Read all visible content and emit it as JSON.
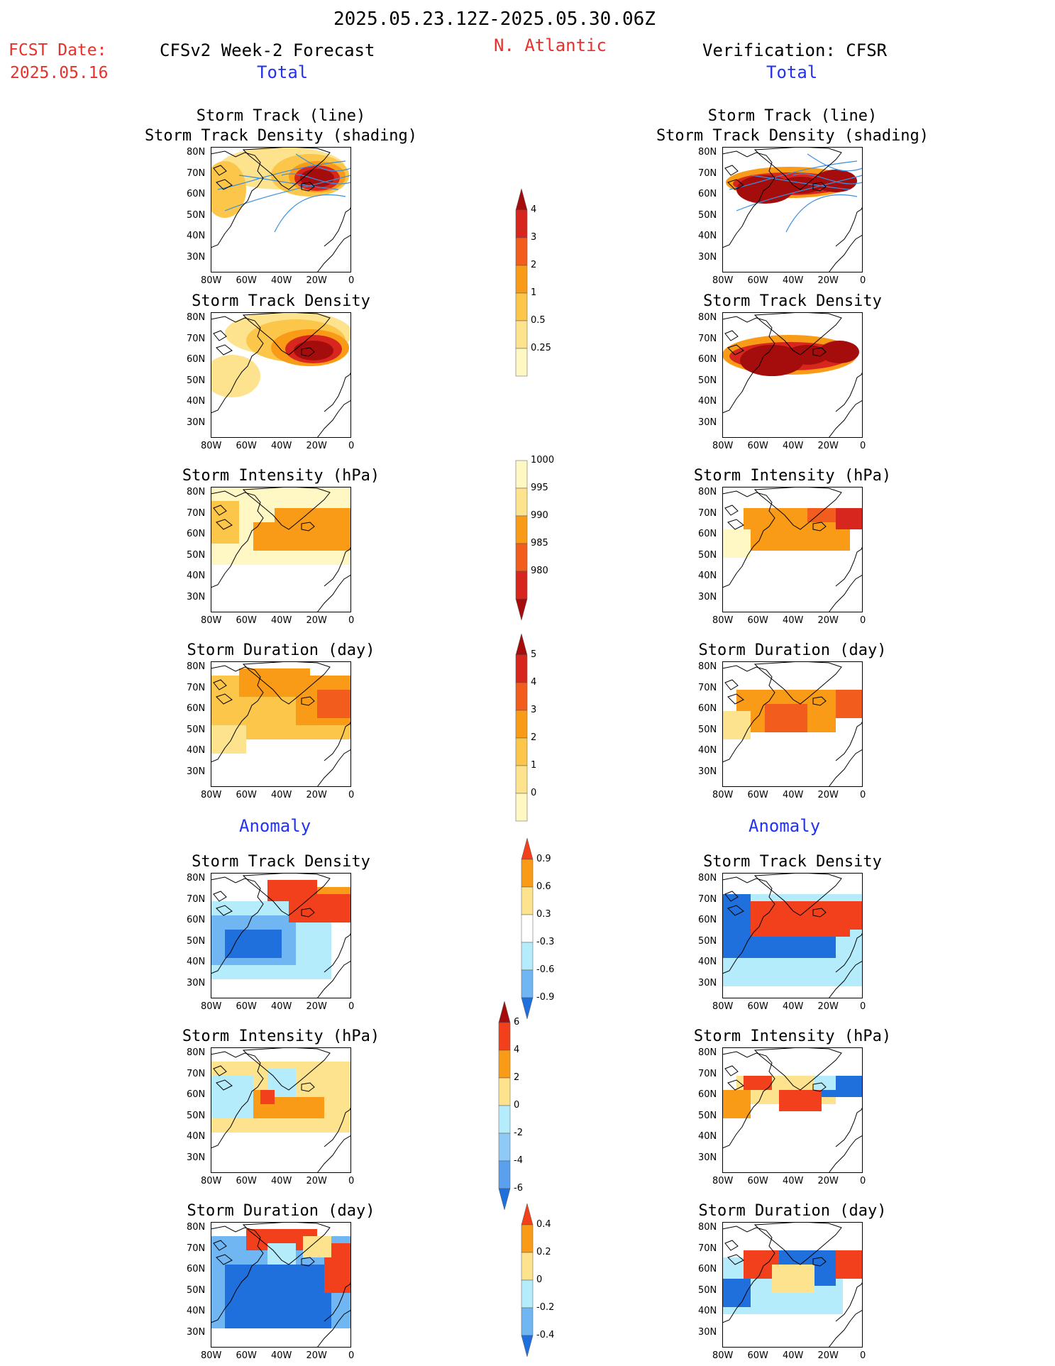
{
  "header": {
    "period": "2025.05.23.12Z-2025.05.30.06Z",
    "fcst_label": "FCST Date:",
    "fcst_date": "2025.05.16",
    "forecast_title": "CFSv2 Week-2 Forecast",
    "region": "N. Atlantic",
    "verification_title": "Verification: CFSR",
    "total_left": "Total",
    "total_right": "Total",
    "anomaly_left": "Anomaly",
    "anomaly_right": "Anomaly"
  },
  "panels": {
    "track_line": "Storm Track (line)",
    "track_shading": "Storm Track Density (shading)",
    "density": "Storm Track Density",
    "intensity": "Storm Intensity (hPa)",
    "duration": "Storm Duration (day)"
  },
  "axes": {
    "lat": [
      "80N",
      "70N",
      "60N",
      "50N",
      "40N",
      "30N"
    ],
    "lon": [
      "80W",
      "60W",
      "40W",
      "20W",
      "0"
    ]
  },
  "colorbars": {
    "density": {
      "labels": [
        "4",
        "3",
        "2",
        "1",
        "0.5",
        "0.25"
      ],
      "colors": [
        "#a50d0d",
        "#d7261e",
        "#f25c1c",
        "#f99b16",
        "#fbc649",
        "#fde38d",
        "#fff8c4"
      ]
    },
    "intensity": {
      "labels": [
        "1000",
        "995",
        "990",
        "985",
        "980"
      ],
      "colors": [
        "#fff8c4",
        "#fde38d",
        "#f99b16",
        "#f25c1c",
        "#d7261e",
        "#a50d0d"
      ]
    },
    "duration": {
      "labels": [
        "5",
        "4",
        "3",
        "2",
        "1",
        "0"
      ],
      "colors": [
        "#a50d0d",
        "#d7261e",
        "#f25c1c",
        "#f99b16",
        "#fbc649",
        "#fde38d",
        "#fff8c4"
      ]
    },
    "anom_density": {
      "labels": [
        "0.9",
        "0.6",
        "0.3",
        "-0.3",
        "-0.6",
        "-0.9"
      ],
      "colors": [
        "#f2401c",
        "#f99b16",
        "#fde38d",
        "#ffffff",
        "#b4ecfb",
        "#6fb6f2",
        "#1f6fdc"
      ]
    },
    "anom_intensity": {
      "labels": [
        "6",
        "4",
        "2",
        "0",
        "-2",
        "-4",
        "-6"
      ],
      "colors": [
        "#a50d0d",
        "#f2401c",
        "#f99b16",
        "#fde38d",
        "#b4ecfb",
        "#8fc9f6",
        "#5aa0ee",
        "#1f6fdc"
      ]
    },
    "anom_duration": {
      "labels": [
        "0.4",
        "0.2",
        "0",
        "-0.2",
        "-0.4"
      ],
      "colors": [
        "#f2401c",
        "#f99b16",
        "#fde38d",
        "#b4ecfb",
        "#6fb6f2",
        "#1f6fdc"
      ]
    }
  }
}
